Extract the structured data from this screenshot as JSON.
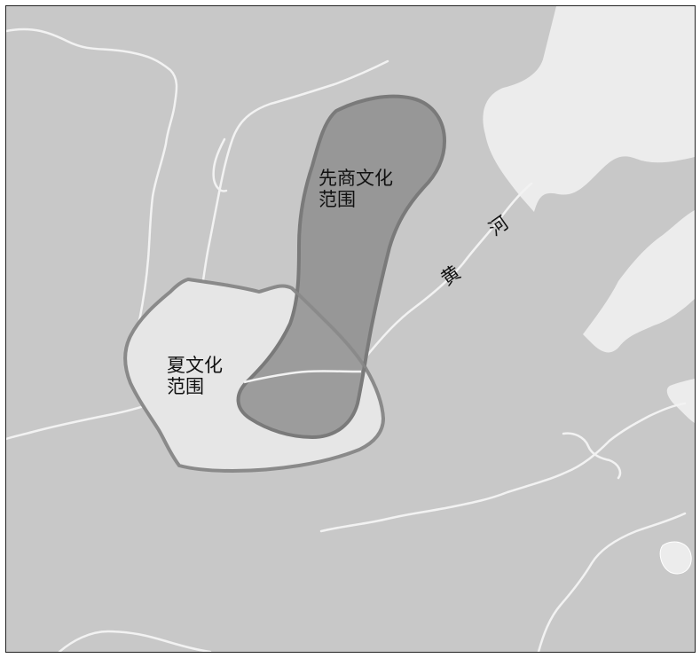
{
  "map": {
    "colors": {
      "land": "#c8c8c8",
      "sea": "#ececec",
      "rivers": "#f2f2f2",
      "xia_fill": "#e6e6e6",
      "xia_border": "#8a8a8a",
      "shang_fill": "#8e8e8e",
      "shang_border": "#7a7a7a"
    }
  },
  "regions": {
    "shang": {
      "line1": "先商文化",
      "line2": "范围"
    },
    "xia": {
      "line1": "夏文化",
      "line2": "范围"
    }
  },
  "river": {
    "char1": "黄",
    "char2": "河"
  }
}
